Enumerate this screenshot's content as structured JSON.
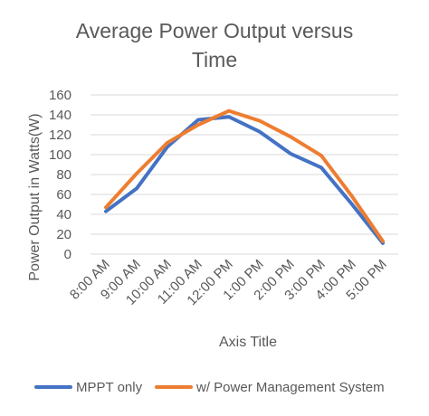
{
  "chart_data": {
    "type": "line",
    "title_lines": [
      "Average Power Output versus",
      "Time"
    ],
    "xlabel": "Axis Title",
    "ylabel": "Power Output in Watts(W)",
    "categories": [
      "8:00 AM",
      "9:00 AM",
      "10:00 AM",
      "11:00 AM",
      "12:00 PM",
      "1:00 PM",
      "2:00 PM",
      "3:00 PM",
      "4:00 PM",
      "5:00 PM"
    ],
    "yticks": [
      "0",
      "20",
      "40",
      "60",
      "80",
      "100",
      "120",
      "140",
      "160"
    ],
    "ylim": [
      0,
      160
    ],
    "grid": true,
    "legend_position": "bottom",
    "series": [
      {
        "name": "MPPT only",
        "color": "#4472C4",
        "values": [
          43,
          66,
          108,
          135,
          138,
          123,
          101,
          87,
          50,
          11
        ]
      },
      {
        "name": "w/ Power Management System",
        "color": "#ED7D31",
        "values": [
          47,
          81,
          112,
          130,
          144,
          134,
          118,
          99,
          58,
          13
        ]
      }
    ]
  }
}
